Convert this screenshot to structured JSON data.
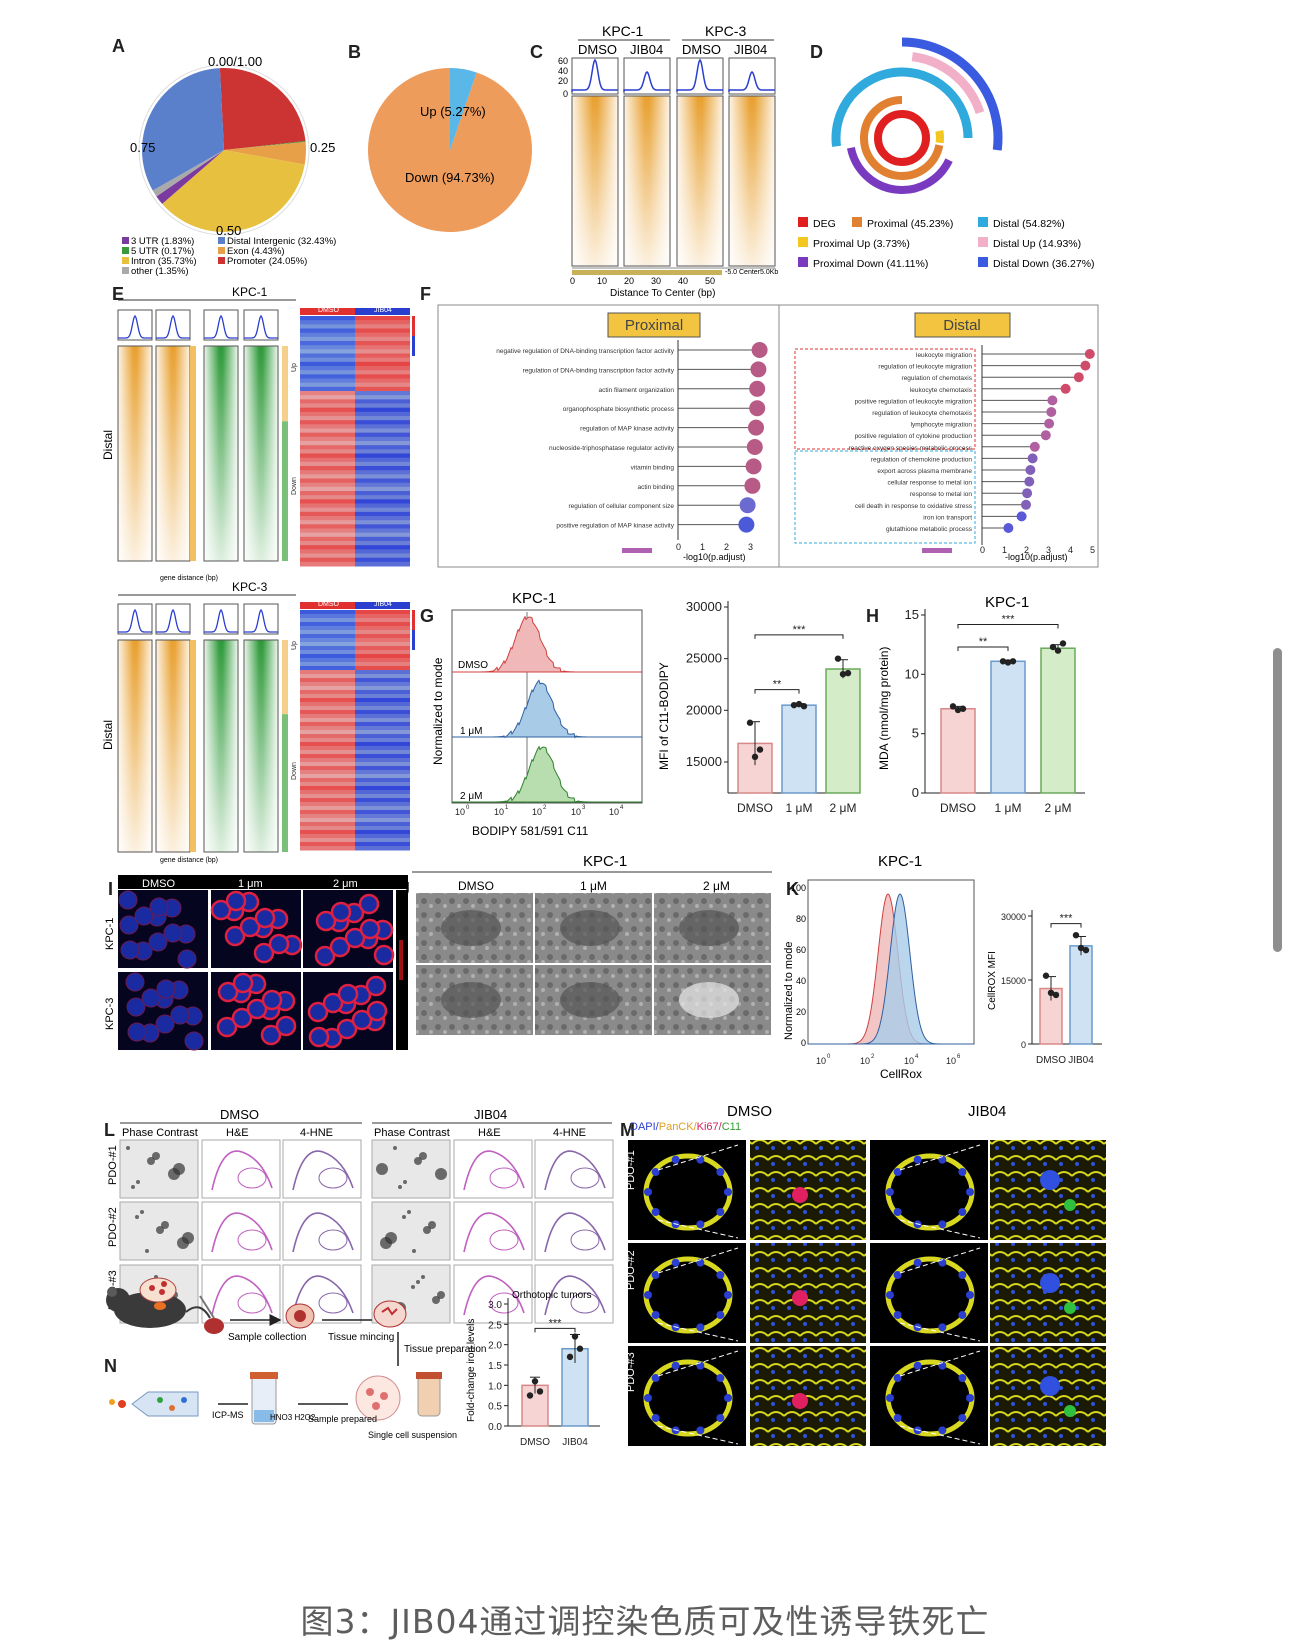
{
  "caption": "图3：JIB04通过调控染色质可及性诱导铁死亡",
  "colors": {
    "up": "#e03030",
    "down": "#2a3ed0",
    "orange": "#e8a030",
    "green": "#2f9a3a",
    "pie_blue": "#5a80cc",
    "pie_red": "#cc3333",
    "pie_yellow": "#e8c040",
    "pie_orange": "#e8a048",
    "purple": "#6a3aa0"
  },
  "panels": {
    "A": {
      "label": "A",
      "ticks": [
        "0.00/1.00",
        "0.25",
        "0.50",
        "0.75"
      ],
      "legend": [
        "3 UTR (1.83%)",
        "5 UTR (0.17%)",
        "Intron (35.73%)",
        "other (1.35%)",
        "Distal Intergenic (32.43%)",
        "Exon (4.43%)",
        "Promoter (24.05%)"
      ]
    },
    "B": {
      "label": "B",
      "up": "Up (5.27%)",
      "down": "Down (94.73%)"
    },
    "C": {
      "label": "C",
      "groups": [
        "KPC-1",
        "KPC-3"
      ],
      "conds": [
        "DMSO",
        "JIB04",
        "DMSO",
        "JIB04"
      ],
      "yticks": [
        "60",
        "40",
        "20",
        "0"
      ],
      "xticks": [
        "0",
        "10",
        "20",
        "30",
        "40",
        "50"
      ],
      "xlabel": "Distance To Center (bp)",
      "scale": "-5.0 Center5.0Kb"
    },
    "D": {
      "label": "D",
      "legend": [
        "DEG",
        "Proximal (45.23%)",
        "Distal (54.82%)",
        "Proximal Up (3.73%)",
        "Distal Up (14.93%)",
        "Proximal Down (41.11%)",
        "Distal Down (36.27%)"
      ]
    },
    "E": {
      "label": "E",
      "kpc1": "KPC-1",
      "kpc3": "KPC-3",
      "ylabel": "Distal",
      "xlabel": "gene distance (bp)",
      "heat_cols": [
        "DMSO",
        "JIB04"
      ],
      "groups": [
        "Up",
        "Down"
      ]
    },
    "F": {
      "label": "F",
      "proximal_title": "Proximal",
      "distal_title": "Distal",
      "proximal_terms": [
        "negative regulation of DNA-binding transcription factor activity",
        "regulation of DNA-binding transcription factor activity",
        "actin filament organization",
        "organophosphate biosynthetic process",
        "regulation of MAP kinase activity",
        "nucleoside-triphosphatase regulator activity",
        "vitamin binding",
        "actin binding",
        "regulation of cellular component size",
        "positive regulation of MAP kinase activity"
      ],
      "distal_terms": [
        "leukocyte migration",
        "regulation of leukocyte migration",
        "regulation of chemotaxis",
        "leukocyte chemotaxis",
        "positive regulation of leukocyte migration",
        "regulation of leukocyte chemotaxis",
        "lymphocyte migration",
        "positive regulation of cytokine production",
        "reactive oxygen species metabolic process",
        "regulation of chemokine production",
        "export across plasma membrane",
        "cellular response to metal ion",
        "response to metal ion",
        "cell death in response to oxidative stress",
        "iron ion transport",
        "glutathione metabolic process"
      ],
      "xlabel": "-log10(p.adjust)",
      "p_ticks": [
        "0",
        "1",
        "2",
        "3"
      ],
      "d_ticks": [
        "0",
        "1",
        "2",
        "3",
        "4",
        "5"
      ]
    },
    "G": {
      "label": "G",
      "title": "KPC-1",
      "hist_ylabel": "Normalized to mode",
      "hist_xlabel": "BODIPY 581/591 C11",
      "rows": [
        "DMSO",
        "1 μM",
        "2 μM"
      ],
      "bar_ylabel": "MFI of C11-BODIPY",
      "yticks": [
        "30000",
        "25000",
        "20000",
        "15000"
      ],
      "cats": [
        "DMSO",
        "1 μM",
        "2 μM"
      ],
      "sig1": "**",
      "sig2": "***"
    },
    "H": {
      "label": "H",
      "title": "KPC-1",
      "ylabel": "MDA (nmol/mg protein)",
      "yticks": [
        "15",
        "10",
        "5",
        "0"
      ],
      "cats": [
        "DMSO",
        "1 μM",
        "2 μM"
      ],
      "sig1": "**",
      "sig2": "***"
    },
    "I": {
      "label": "I",
      "cols": [
        "DMSO",
        "1 μm",
        "2 μm"
      ],
      "rows": [
        "KPC-1",
        "KPC-3"
      ]
    },
    "J": {
      "label": "J",
      "title": "KPC-1",
      "cols": [
        "DMSO",
        "1 μM",
        "2 μM"
      ]
    },
    "K": {
      "label": "K",
      "title": "KPC-1",
      "hist_ylabel": "Normalized to mode",
      "hist_xlabel": "CellRox",
      "yticks": [
        "100",
        "80",
        "60",
        "40",
        "20",
        "0"
      ],
      "bar_ylabel": "CellROX MFI",
      "bar_yticks": [
        "30000",
        "15000",
        "0"
      ],
      "cats": [
        "DMSO",
        "JIB04"
      ],
      "sig": "***"
    },
    "L": {
      "label": "L",
      "groups": [
        "DMSO",
        "JIB04"
      ],
      "cols": [
        "Phase Contrast",
        "H&E",
        "4-HNE"
      ],
      "rows": [
        "PDO-#1",
        "PDO-#2",
        "PDO-#3"
      ]
    },
    "M": {
      "label": "M",
      "groups": [
        "DMSO",
        "JIB04"
      ],
      "stain": [
        "DAPI/",
        "PanCK/",
        "Ki67/",
        "C11"
      ],
      "rows": [
        "PDO-#1",
        "PDO-#2",
        "PDO-#3"
      ]
    },
    "N": {
      "label": "N",
      "steps": [
        "Sample collection",
        "Tissue mincing",
        "Tissue preparation",
        "Single cell suspension",
        "Sample prepared",
        "HNO3 H2O2",
        "ICP-MS"
      ],
      "chart_title": "Orthotopic tumors",
      "ylabel": "Fold-change iron levels",
      "yticks": [
        "3.0",
        "2.5",
        "2.0",
        "1.5",
        "1.0",
        "0.5",
        "0.0"
      ],
      "cats": [
        "DMSO",
        "JIB04"
      ],
      "sig": "***"
    }
  },
  "chart_data": [
    {
      "panel": "A",
      "type": "pie",
      "categories": [
        "Promoter",
        "Distal Intergenic",
        "Intron",
        "Exon",
        "5 UTR",
        "3 UTR",
        "other"
      ],
      "values": [
        24.05,
        32.43,
        35.73,
        4.43,
        0.17,
        1.83,
        1.35
      ]
    },
    {
      "panel": "B",
      "type": "pie",
      "categories": [
        "Up",
        "Down"
      ],
      "values": [
        5.27,
        94.73
      ]
    },
    {
      "panel": "G",
      "type": "bar",
      "title": "KPC-1",
      "ylabel": "MFI of C11-BODIPY",
      "categories": [
        "DMSO",
        "1 μM",
        "2 μM"
      ],
      "values": [
        16800,
        20500,
        24000
      ],
      "ylim": [
        12000,
        30000
      ]
    },
    {
      "panel": "H",
      "type": "bar",
      "title": "KPC-1",
      "ylabel": "MDA (nmol/mg protein)",
      "categories": [
        "DMSO",
        "1 μM",
        "2 μM"
      ],
      "values": [
        7.1,
        11.1,
        12.2
      ],
      "ylim": [
        0,
        15
      ]
    },
    {
      "panel": "K",
      "type": "bar",
      "ylabel": "CellROX MFI",
      "categories": [
        "DMSO",
        "JIB04"
      ],
      "values": [
        13000,
        23000
      ],
      "ylim": [
        0,
        30000
      ]
    },
    {
      "panel": "N",
      "type": "bar",
      "title": "Orthotopic tumors",
      "ylabel": "Fold-change iron levels",
      "categories": [
        "DMSO",
        "JIB04"
      ],
      "values": [
        1.0,
        1.9
      ],
      "ylim": [
        0,
        3.0
      ]
    }
  ]
}
